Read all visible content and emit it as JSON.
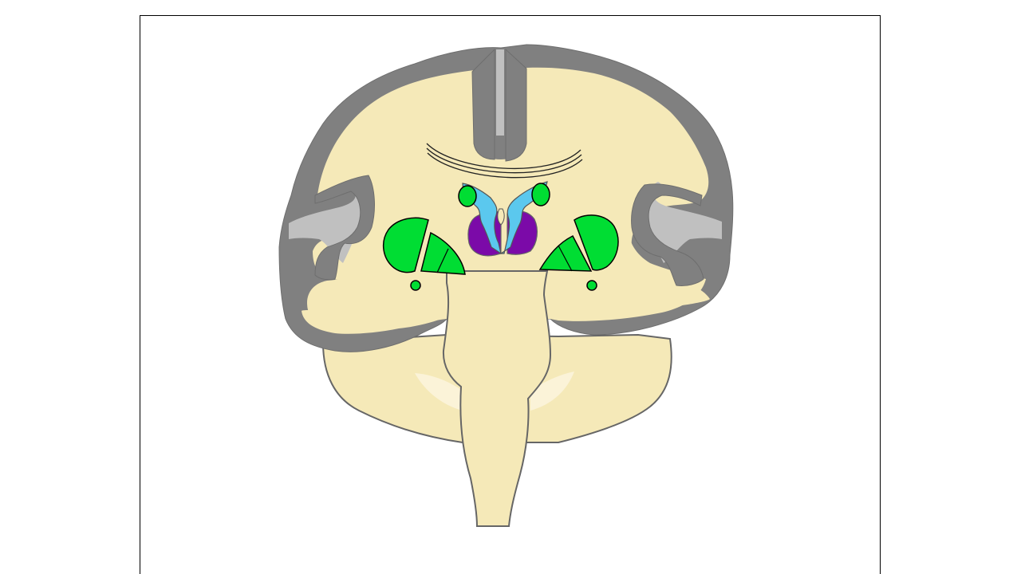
{
  "diagram": {
    "colors": {
      "white_matter": "#f5e9b8",
      "cortex": "#808080",
      "insula": "#c0c0c0",
      "basal_ganglia": "#00dd33",
      "ventricles": "#5bc8ee",
      "thalamus": "#7b0aa8",
      "outline": "#666666",
      "cerebellum_light": "#fbf3d8"
    }
  }
}
